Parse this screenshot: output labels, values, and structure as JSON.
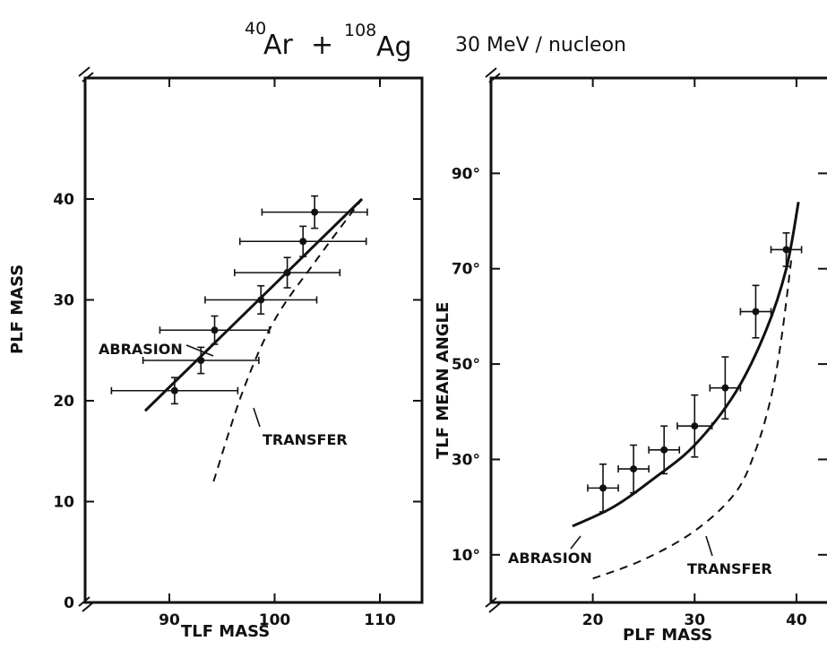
{
  "header": {
    "reaction": {
      "proj_mass": "40",
      "proj": "Ar",
      "plus": "+",
      "target_mass": "108",
      "target": "Ag"
    },
    "energy": "30 MeV / nucleon"
  },
  "chart_data": [
    {
      "type": "scatter",
      "xlabel": "TLF MASS",
      "ylabel": "PLF MASS",
      "xlim": [
        82,
        114
      ],
      "ylim": [
        0,
        52
      ],
      "xticks": [
        90,
        100,
        110
      ],
      "xtick_labels": [
        "90",
        "100",
        "110"
      ],
      "yticks": [
        0,
        10,
        20,
        30,
        40
      ],
      "ytick_labels": [
        "0",
        "10",
        "20",
        "30",
        "40"
      ],
      "points": [
        {
          "x": 90.5,
          "y": 21,
          "xerr": 6,
          "yerr": 1.3
        },
        {
          "x": 93.0,
          "y": 24,
          "xerr": 5.5,
          "yerr": 1.3
        },
        {
          "x": 94.3,
          "y": 27,
          "xerr": 5.2,
          "yerr": 1.4
        },
        {
          "x": 98.7,
          "y": 30,
          "xerr": 5.3,
          "yerr": 1.4
        },
        {
          "x": 101.2,
          "y": 32.7,
          "xerr": 5,
          "yerr": 1.5
        },
        {
          "x": 102.7,
          "y": 35.8,
          "xerr": 6,
          "yerr": 1.5
        },
        {
          "x": 103.8,
          "y": 38.7,
          "xerr": 5,
          "yerr": 1.6
        }
      ],
      "curves": [
        {
          "label": "ABRASION",
          "style": "solid",
          "x": [
            87.7,
            108.3
          ],
          "y": [
            19,
            40
          ]
        },
        {
          "label": "TRANSFER",
          "style": "dashed",
          "x": [
            94.2,
            97.0,
            100.0,
            104.0,
            108.3
          ],
          "y": [
            12,
            21,
            28,
            34,
            40
          ]
        }
      ],
      "annotations": [
        "ABRASION",
        "TRANSFER"
      ]
    },
    {
      "type": "scatter",
      "xlabel": "PLF MASS",
      "ylabel": "TLF MEAN ANGLE",
      "xlim": [
        10,
        43
      ],
      "ylim": [
        0,
        110
      ],
      "xticks": [
        20,
        30,
        40
      ],
      "xtick_labels": [
        "20",
        "30",
        "40"
      ],
      "yticks": [
        10,
        30,
        50,
        70,
        90
      ],
      "ytick_labels": [
        "10°",
        "30°",
        "50°",
        "70°",
        "90°"
      ],
      "points": [
        {
          "x": 21,
          "y": 24,
          "xerr": 1.5,
          "yerr": 5
        },
        {
          "x": 24,
          "y": 28,
          "xerr": 1.5,
          "yerr": 5
        },
        {
          "x": 27,
          "y": 32,
          "xerr": 1.5,
          "yerr": 5
        },
        {
          "x": 30,
          "y": 37,
          "xerr": 1.7,
          "yerr": 6.5
        },
        {
          "x": 33,
          "y": 45,
          "xerr": 1.5,
          "yerr": 6.5
        },
        {
          "x": 36,
          "y": 61,
          "xerr": 1.5,
          "yerr": 5.5
        },
        {
          "x": 39,
          "y": 74,
          "xerr": 1.5,
          "yerr": 3.5
        }
      ],
      "curves": [
        {
          "label": "ABRASION",
          "style": "solid",
          "x": [
            18,
            22,
            26,
            30,
            34,
            37,
            39,
            40.2
          ],
          "y": [
            16,
            20,
            26,
            33,
            44,
            57,
            70,
            84
          ]
        },
        {
          "label": "TRANSFER",
          "style": "dashed",
          "x": [
            20,
            25,
            30,
            34,
            36,
            37.5,
            38.5,
            39.5
          ],
          "y": [
            5,
            9,
            15,
            23,
            32,
            43,
            55,
            72
          ]
        }
      ],
      "annotations": [
        "ABRASION",
        "TRANSFER"
      ]
    }
  ]
}
